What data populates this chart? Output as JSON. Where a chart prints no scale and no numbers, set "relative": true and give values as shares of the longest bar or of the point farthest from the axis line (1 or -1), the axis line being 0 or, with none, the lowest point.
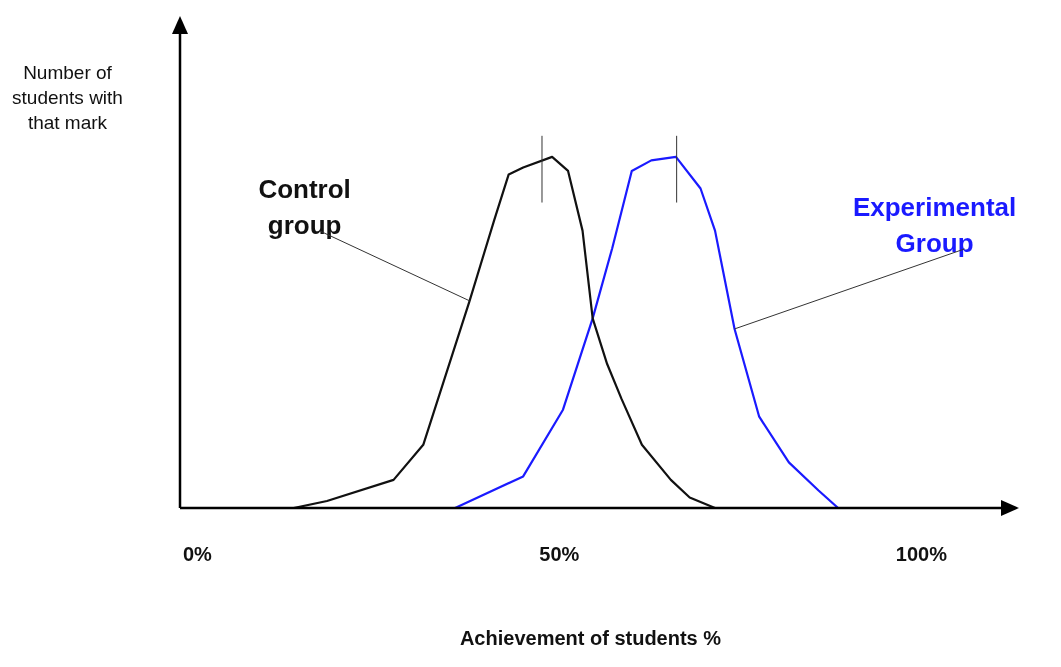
{
  "chart_data": {
    "type": "line",
    "xlabel": "Achievement of students %",
    "ylabel": "Number of students with that mark",
    "relative": true,
    "xlim": [
      -2.4,
      111
    ],
    "xticks": [
      {
        "value": 0,
        "label": "0%"
      },
      {
        "value": 50,
        "label": "50%"
      },
      {
        "value": 100,
        "label": "100%"
      }
    ],
    "grid": false,
    "legend": false,
    "marker": "none",
    "line_style": "solid",
    "series": [
      {
        "name": "Control group",
        "color": "#111111",
        "x": [
          13.3,
          17.9,
          27.1,
          31.2,
          37.6,
          41,
          43,
          45,
          49,
          51.2,
          53.2,
          54.6,
          56.6,
          58.6,
          61.4,
          65.4,
          68,
          71.5
        ],
        "values": [
          0,
          0.02,
          0.08,
          0.18,
          0.59,
          0.82,
          0.95,
          0.97,
          1,
          0.96,
          0.79,
          0.54,
          0.41,
          0.31,
          0.18,
          0.08,
          0.03,
          0
        ]
      },
      {
        "name": "Experimental Group",
        "color": "#1a1aff",
        "x": [
          30.9,
          35.6,
          45,
          50.5,
          54.6,
          57.3,
          60,
          62.7,
          66.1,
          69.5,
          71.5,
          74.2,
          77.6,
          81.7,
          85.8,
          88.5
        ],
        "values": [
          0,
          0,
          0.09,
          0.28,
          0.54,
          0.74,
          0.96,
          0.99,
          1,
          0.91,
          0.79,
          0.51,
          0.26,
          0.13,
          0.05,
          0
        ]
      }
    ],
    "ref_lines": [
      {
        "axis": "x",
        "value": 47.6
      },
      {
        "axis": "x",
        "value": 66.2
      }
    ]
  }
}
